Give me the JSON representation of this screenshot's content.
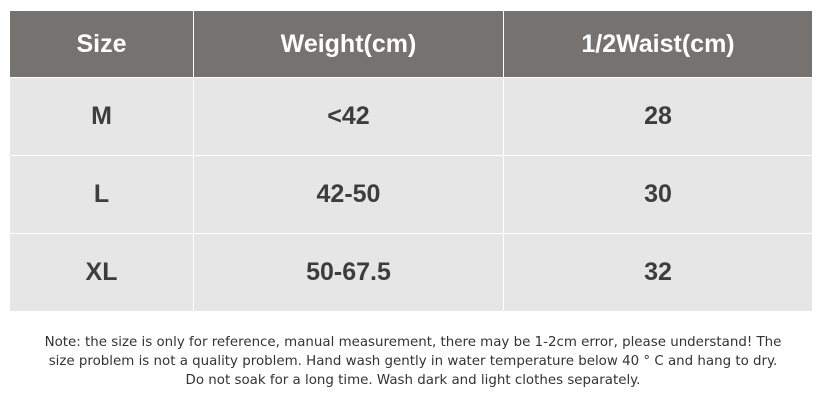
{
  "table": {
    "header": [
      "Size",
      "Weight(cm)",
      "1/2Waist(cm)"
    ],
    "rows": [
      [
        "M",
        "<42",
        "28"
      ],
      [
        "L",
        "42-50",
        "30"
      ],
      [
        "XL",
        "50-67.5",
        "32"
      ]
    ]
  },
  "note": {
    "lines": [
      "Note: the size is only for reference, manual measurement, there may be 1-2cm error, please understand! The",
      "size problem is not a quality problem. Hand wash gently in water temperature below 40 ° C and hang to dry.",
      "Do not soak for a long time. Wash dark and light clothes separately."
    ]
  }
}
